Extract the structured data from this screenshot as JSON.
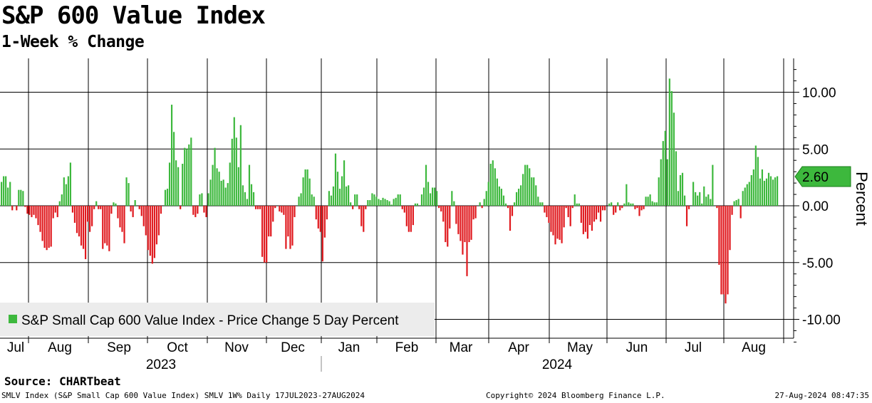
{
  "header": {
    "title": "S&P 600 Value Index",
    "subtitle": "1-Week % Change"
  },
  "source": "Source: CHARTbeat",
  "footer": {
    "left": "SMLV Index (S&P Small Cap 600 Value Index) SMLV 1W%  Daily 17JUL2023-27AUG2024",
    "center": "Copyright© 2024 Bloomberg Finance L.P.",
    "right": "27-Aug-2024 08:47:35"
  },
  "colors": {
    "positive": "#3db83d",
    "negative": "#e0191e",
    "grid": "#000000",
    "legend_bg": "#ececec",
    "last_value_box": "#3db83d"
  },
  "chart_data": {
    "type": "bar",
    "title": "S&P 600 Value Index",
    "subtitle": "1-Week % Change",
    "ylabel": "Percent",
    "ylim": [
      -12,
      13
    ],
    "yticks": [
      "10.00",
      "5.00",
      "0.00",
      "-5.00",
      "-10.00"
    ],
    "ytick_values": [
      10,
      5,
      0,
      -5,
      -10
    ],
    "grid": true,
    "legend": "S&P Small Cap 600 Value Index - Price Change 5 Day Percent",
    "legend_position": "bottom-left",
    "last_value": 2.6,
    "last_value_label": "2.60",
    "months": [
      "Jul",
      "Aug",
      "Sep",
      "Oct",
      "Nov",
      "Dec",
      "Jan",
      "Feb",
      "Mar",
      "Apr",
      "May",
      "Jun",
      "Jul",
      "Aug"
    ],
    "years": [
      "2023",
      "2024"
    ],
    "values": [
      2.1,
      2.6,
      2.6,
      1.6,
      2.1,
      -0.4,
      0,
      -0.4,
      1.4,
      1.4,
      1.3,
      -0.1,
      -0.7,
      -0.8,
      -1.0,
      -0.8,
      -1.1,
      -1.7,
      -2.3,
      -3.1,
      -3.7,
      -3.9,
      -3.7,
      -3.6,
      -1.1,
      -0.6,
      -1.0,
      0.4,
      1.0,
      2.5,
      1.9,
      2.6,
      3.8,
      -0.6,
      -1.5,
      -2.4,
      -2.7,
      -3.5,
      -3.8,
      -4.7,
      -1.4,
      -2.3,
      -1.8,
      -0.3,
      0.4,
      -0.3,
      -0.3,
      -3.8,
      -3.3,
      -3.5,
      -4.0,
      -0.7,
      0.3,
      0.2,
      -1.1,
      -1.9,
      -2.3,
      -3.3,
      2.5,
      2.0,
      -0.5,
      -1.0,
      0.5,
      0,
      -0.3,
      -0.9,
      -1.8,
      -2.6,
      -3.9,
      -4.4,
      -5.1,
      -4.6,
      -3.4,
      -2.6,
      -0.7,
      0,
      1.4,
      1.5,
      3.8,
      8.9,
      6.5,
      4.0,
      3.4,
      -0.3,
      3.7,
      5.1,
      5.0,
      5.4,
      6.0,
      -0.8,
      -1.0,
      -0.7,
      1.0,
      1.1,
      -0.6,
      -1.0,
      1.1,
      2.3,
      3.6,
      5.1,
      3.3,
      3.0,
      2.2,
      2.3,
      1.6,
      2.0,
      3.8,
      5.9,
      7.8,
      6.0,
      3.4,
      7.1,
      1.8,
      1.2,
      0.6,
      3.6,
      1.9,
      1.2,
      -0.3,
      -0.3,
      -0.3,
      -4.5,
      -5.0,
      -5.0,
      -2.7,
      -2.7,
      -1.4,
      -0.2,
      0,
      -0.5,
      -0.6,
      -0.8,
      -3.8,
      -2.7,
      -3.8,
      -3.5,
      -1.0,
      0,
      0.8,
      1.1,
      2.5,
      3.2,
      3.2,
      2.4,
      1.0,
      0.8,
      -1.2,
      -2.0,
      -2.3,
      -4.9,
      -2.8,
      -1.2,
      1.3,
      0.9,
      1.7,
      4.6,
      3.0,
      1.5,
      2.6,
      4.0,
      1.7,
      1.8,
      0.3,
      -0.3,
      1.0,
      1.0,
      -0.3,
      -1.8,
      -2.3,
      -0.3,
      0.5,
      0.5,
      1.1,
      1.0,
      0.8,
      0.6,
      0.5,
      0.7,
      0.6,
      0.5,
      0.4,
      0.1,
      0.6,
      0.7,
      1.0,
      1.0,
      -0.3,
      -0.6,
      -1.8,
      -2.3,
      -2.3,
      -1.7,
      0.2,
      0.2,
      0,
      1.0,
      1.6,
      3.6,
      2.1,
      1.1,
      1.6,
      1.6,
      1.3,
      -0.2,
      -0.5,
      -1.4,
      -3.2,
      -3.6,
      -2.0,
      1.3,
      0.4,
      -1.6,
      -2.5,
      -3.1,
      -4.3,
      -3.2,
      -6.2,
      -3.2,
      -3.0,
      -1.2,
      -1.1,
      0,
      0.3,
      -0.2,
      0.6,
      1.3,
      2.1,
      3.7,
      4.0,
      3.3,
      2.4,
      1.7,
      1.5,
      0.9,
      0.2,
      -0.2,
      -2.2,
      -0.9,
      0.3,
      1.2,
      1.5,
      1.8,
      2.8,
      3.6,
      3.6,
      3.3,
      2.5,
      2.5,
      1.8,
      0.8,
      0.3,
      0.3,
      -0.6,
      -1.0,
      -1.5,
      -2.3,
      -2.6,
      -3.4,
      -2.9,
      -3.0,
      -3.3,
      -1.9,
      -0.2,
      -1.0,
      -1.8,
      -0.2,
      1.0,
      0.2,
      0.2,
      -1.5,
      -2.5,
      -2.3,
      -2.9,
      -1.7,
      -2.2,
      -1.4,
      -1.2,
      -0.6,
      -1.4,
      -0.4,
      -0.4,
      0,
      0.2,
      0.3,
      -0.8,
      -0.6,
      0.3,
      -0.4,
      -0.2,
      0.2,
      1.9,
      0.3,
      0.2,
      0.2,
      -0.3,
      -0.2,
      -0.9,
      -0.4,
      -0.3,
      0.8,
      0.8,
      1.0,
      0.4,
      0.3,
      0.3,
      2.5,
      4.1,
      5.7,
      6.6,
      4.1,
      11.2,
      10.1,
      8.2,
      4.8,
      1.3,
      2.7,
      2.9,
      0.9,
      -1.8,
      -0.3,
      0,
      2.1,
      1.2,
      0.9,
      1.2,
      0.2,
      1.7,
      0.8,
      1.0,
      0.6,
      3.6,
      0,
      -0.2,
      -5.2,
      -7.8,
      -7.8,
      -8.6,
      -7.8,
      -3.9,
      -0.8,
      0.4,
      0.5,
      0.6,
      -1.1,
      1.3,
      1.6,
      1.9,
      2.1,
      2.7,
      3.2,
      5.3,
      4.3,
      2.4,
      3.2,
      2.2,
      2.4,
      2.9,
      2.6,
      2.3,
      2.5,
      2.6
    ]
  }
}
